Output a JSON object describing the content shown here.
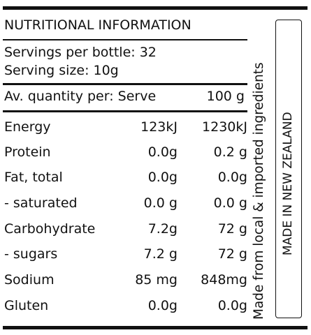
{
  "panel": {
    "title": "NUTRITIONAL INFORMATION",
    "servings_per_bottle": "Servings per bottle: 32",
    "serving_size": "Serving size: 10g",
    "header": {
      "label": "Av. quantity per: Serve",
      "per_100g": "100 g"
    },
    "rows": [
      {
        "nutrient": "Energy",
        "serve": "123kJ",
        "per_100g": "1230kJ"
      },
      {
        "nutrient": "Protein",
        "serve": "0.0g",
        "per_100g": "0.2 g"
      },
      {
        "nutrient": "Fat, total",
        "serve": "0.0g",
        "per_100g": "0.0g"
      },
      {
        "nutrient": "- saturated",
        "serve": "0.0 g",
        "per_100g": "0.0 g"
      },
      {
        "nutrient": "Carbohydrate",
        "serve": "7.2g",
        "per_100g": "72 g"
      },
      {
        "nutrient": "- sugars",
        "serve": "7.2 g",
        "per_100g": "72 g"
      },
      {
        "nutrient": "Sodium",
        "serve": "85 mg",
        "per_100g": "848mg"
      },
      {
        "nutrient": "Gluten",
        "serve": "0.0g",
        "per_100g": "0.0g"
      }
    ]
  },
  "side_text": "Made from local & imported ingredients",
  "origin_label": "MADE IN NEW ZEALAND"
}
